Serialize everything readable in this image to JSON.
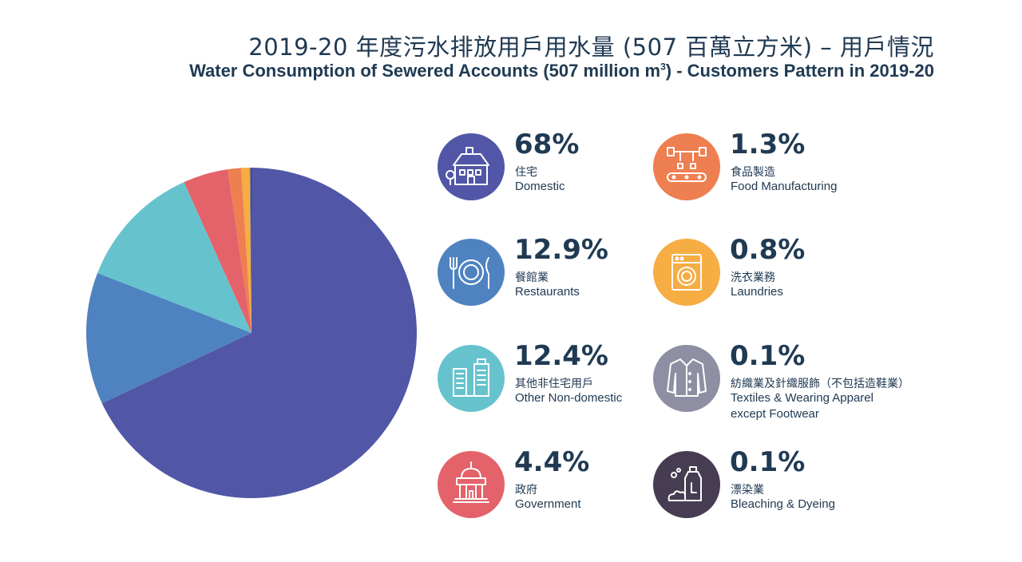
{
  "title_zh": "2019-20 年度污水排放用戶用水量 (507 百萬立方米) – 用戶情況",
  "title_en_main": "Water Consumption of Sewered Accounts (507 million m",
  "title_en_sup": "3",
  "title_en_tail": ") - Customers Pattern in 2019-20",
  "chart_data": {
    "type": "pie",
    "title": "Water Consumption of Sewered Accounts (507 million m3) - Customers Pattern in 2019-20",
    "unit": "%",
    "slices": [
      {
        "label_zh": "住宅",
        "label_en": "Domestic",
        "value": 68,
        "display": "68%",
        "color": "#5157a6",
        "icon": "house-icon"
      },
      {
        "label_zh": "餐館業",
        "label_en": "Restaurants",
        "value": 12.9,
        "display": "12.9%",
        "color": "#4f82c1",
        "icon": "dining-plate-icon"
      },
      {
        "label_zh": "其他非住宅用戶",
        "label_en": "Other Non-domestic",
        "value": 12.4,
        "display": "12.4%",
        "color": "#66c3ce",
        "icon": "office-buildings-icon"
      },
      {
        "label_zh": "政府",
        "label_en": "Government",
        "value": 4.4,
        "display": "4.4%",
        "color": "#e4626a",
        "icon": "government-building-icon"
      },
      {
        "label_zh": "食品製造",
        "label_en": "Food Manufacturing",
        "value": 1.3,
        "display": "1.3%",
        "color": "#ee7f51",
        "icon": "factory-conveyor-icon"
      },
      {
        "label_zh": "洗衣業務",
        "label_en": "Laundries",
        "value": 0.8,
        "display": "0.8%",
        "color": "#f6ad43",
        "icon": "washing-machine-icon"
      },
      {
        "label_zh": "紡織業及針織服飾（不包括造鞋業）",
        "label_en": "Textiles & Wearing Apparel",
        "label_en2": "except Footwear",
        "value": 0.1,
        "display": "0.1%",
        "color": "#8f8fa3",
        "icon": "jacket-icon"
      },
      {
        "label_zh": "漂染業",
        "label_en": "Bleaching & Dyeing",
        "value": 0.1,
        "display": "0.1%",
        "color": "#463d52",
        "icon": "detergent-bottle-icon"
      }
    ]
  }
}
